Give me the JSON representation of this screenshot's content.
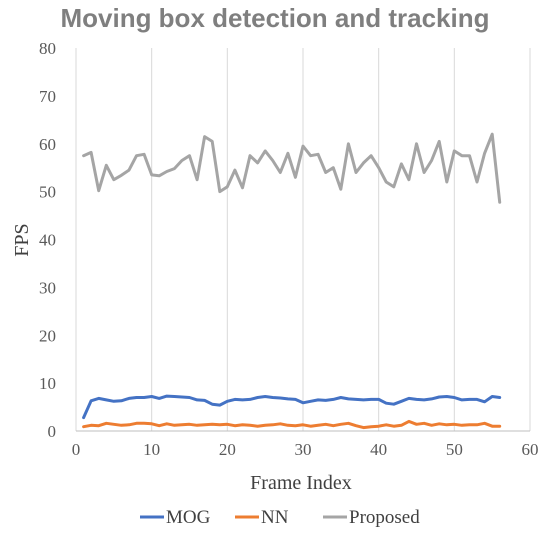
{
  "chart_data": {
    "type": "line",
    "title": "Moving box detection and tracking",
    "xlabel": "Frame Index",
    "ylabel": "FPS",
    "xlim": [
      0,
      60
    ],
    "ylim": [
      0,
      80
    ],
    "xticks": [
      "0",
      "10",
      "20",
      "30",
      "40",
      "50",
      "60"
    ],
    "yticks": [
      "0",
      "10",
      "20",
      "30",
      "40",
      "50",
      "60",
      "70",
      "80"
    ],
    "grid": "vertical",
    "legend": "bottom",
    "x": [
      1,
      2,
      3,
      4,
      5,
      6,
      7,
      8,
      9,
      10,
      11,
      12,
      13,
      14,
      15,
      16,
      17,
      18,
      19,
      20,
      21,
      22,
      23,
      24,
      25,
      26,
      27,
      28,
      29,
      30,
      31,
      32,
      33,
      34,
      35,
      36,
      37,
      38,
      39,
      40,
      41,
      42,
      43,
      44,
      45,
      46,
      47,
      48,
      49,
      50,
      51,
      52,
      53,
      54,
      55,
      56
    ],
    "series": [
      {
        "name": "MOG",
        "color": "#4472c4",
        "values": [
          2.8,
          6.3,
          6.8,
          6.5,
          6.2,
          6.3,
          6.8,
          7.0,
          7.0,
          7.2,
          6.8,
          7.3,
          7.2,
          7.1,
          7.0,
          6.5,
          6.4,
          5.6,
          5.4,
          6.2,
          6.6,
          6.5,
          6.6,
          7.0,
          7.2,
          7.0,
          6.9,
          6.7,
          6.6,
          5.9,
          6.2,
          6.5,
          6.4,
          6.6,
          7.0,
          6.7,
          6.6,
          6.5,
          6.6,
          6.6,
          5.8,
          5.6,
          6.2,
          6.8,
          6.6,
          6.5,
          6.7,
          7.1,
          7.2,
          7.0,
          6.5,
          6.6,
          6.6,
          6.1,
          7.2,
          7.0
        ]
      },
      {
        "name": "NN",
        "color": "#ed7d31",
        "values": [
          0.9,
          1.2,
          1.1,
          1.6,
          1.4,
          1.2,
          1.3,
          1.6,
          1.6,
          1.5,
          1.1,
          1.5,
          1.2,
          1.3,
          1.4,
          1.2,
          1.3,
          1.4,
          1.3,
          1.4,
          1.1,
          1.3,
          1.2,
          1.0,
          1.2,
          1.3,
          1.5,
          1.2,
          1.1,
          1.3,
          1.0,
          1.2,
          1.4,
          1.1,
          1.4,
          1.6,
          1.1,
          0.7,
          0.9,
          1.0,
          1.3,
          1.0,
          1.2,
          2.0,
          1.4,
          1.6,
          1.2,
          1.5,
          1.3,
          1.4,
          1.2,
          1.3,
          1.3,
          1.6,
          1.0,
          1.0
        ]
      },
      {
        "name": "Proposed",
        "color": "#a5a5a5",
        "values": [
          57.5,
          58.2,
          50.2,
          55.5,
          52.5,
          53.4,
          54.5,
          57.5,
          57.8,
          53.5,
          53.3,
          54.2,
          54.8,
          56.5,
          57.5,
          52.5,
          61.5,
          60.5,
          50.0,
          51.0,
          54.5,
          50.8,
          57.5,
          56.0,
          58.5,
          56.5,
          54.0,
          58.0,
          53.0,
          59.5,
          57.5,
          57.8,
          54.0,
          55.0,
          50.5,
          60.0,
          54.0,
          56.0,
          57.5,
          55.0,
          52.0,
          51.0,
          55.8,
          52.5,
          60.0,
          54.0,
          56.5,
          60.5,
          52.0,
          58.5,
          57.5,
          57.5,
          52.0,
          58.0,
          62.0,
          47.8
        ]
      }
    ]
  }
}
